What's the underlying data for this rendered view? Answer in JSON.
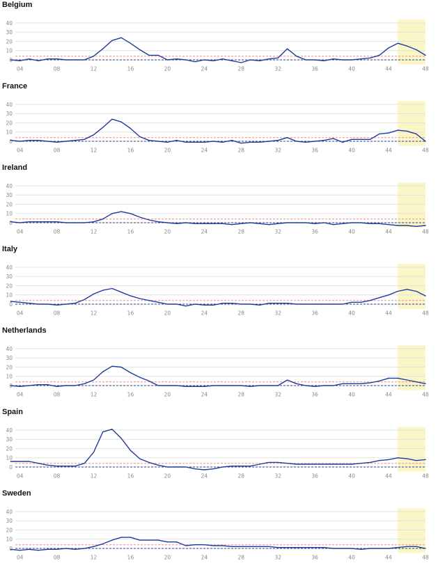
{
  "colors": {
    "line": "#1f3a9c",
    "threshold": "#f08a8a",
    "baseline": "#2f3f8f",
    "highlight": "#fbf6c5",
    "grid": "#e2e2e2",
    "axis_text": "#888888"
  },
  "chart_data": [
    {
      "type": "line",
      "title": "Belgium",
      "x": [
        3,
        4,
        5,
        6,
        7,
        8,
        9,
        10,
        11,
        12,
        13,
        14,
        15,
        16,
        17,
        18,
        19,
        20,
        21,
        22,
        23,
        24,
        25,
        26,
        27,
        28,
        29,
        30,
        31,
        32,
        33,
        34,
        35,
        36,
        37,
        38,
        39,
        40,
        41,
        42,
        43,
        44,
        45,
        46,
        47,
        48
      ],
      "values": [
        0,
        -1,
        1,
        -1,
        1,
        1,
        0,
        0,
        0,
        4,
        12,
        21,
        24,
        18,
        11,
        5,
        5,
        0,
        1,
        0,
        -2,
        0,
        -1,
        1,
        -1,
        -3,
        0,
        -1,
        1,
        2,
        12,
        4,
        0,
        0,
        -1,
        1,
        0,
        0,
        1,
        2,
        5,
        13,
        18,
        15,
        11,
        5
      ],
      "xticks": [
        "04",
        "08",
        "12",
        "16",
        "20",
        "24",
        "28",
        "32",
        "36",
        "40",
        "44",
        "48"
      ],
      "yticks": [
        "40",
        "30",
        "20",
        "10",
        "0"
      ],
      "ylim": [
        -5,
        42
      ],
      "threshold": 4,
      "baseline": 0,
      "highlight_x": [
        45,
        48
      ]
    },
    {
      "type": "line",
      "title": "France",
      "x": [
        3,
        4,
        5,
        6,
        7,
        8,
        9,
        10,
        11,
        12,
        13,
        14,
        15,
        16,
        17,
        18,
        19,
        20,
        21,
        22,
        23,
        24,
        25,
        26,
        27,
        28,
        29,
        30,
        31,
        32,
        33,
        34,
        35,
        36,
        37,
        38,
        39,
        40,
        41,
        42,
        43,
        44,
        45,
        46,
        47,
        48
      ],
      "values": [
        1,
        0,
        1,
        1,
        0,
        -1,
        0,
        1,
        2,
        7,
        15,
        24,
        21,
        14,
        5,
        1,
        0,
        -1,
        1,
        -1,
        -1,
        -1,
        0,
        -1,
        1,
        -2,
        -1,
        -1,
        0,
        1,
        4,
        0,
        -1,
        0,
        1,
        3,
        -1,
        2,
        2,
        2,
        8,
        9,
        12,
        11,
        8,
        0
      ],
      "xticks": [
        "04",
        "08",
        "12",
        "16",
        "20",
        "24",
        "28",
        "32",
        "36",
        "40",
        "44",
        "48"
      ],
      "yticks": [
        "40",
        "30",
        "20",
        "10",
        "0"
      ],
      "ylim": [
        -5,
        42
      ],
      "threshold": 4,
      "baseline": 0,
      "highlight_x": [
        45,
        48
      ]
    },
    {
      "type": "line",
      "title": "Ireland",
      "x": [
        3,
        4,
        5,
        6,
        7,
        8,
        9,
        10,
        11,
        12,
        13,
        14,
        15,
        16,
        17,
        18,
        19,
        20,
        21,
        22,
        23,
        24,
        25,
        26,
        27,
        28,
        29,
        30,
        31,
        32,
        33,
        34,
        35,
        36,
        37,
        38,
        39,
        40,
        41,
        42,
        43,
        44,
        45,
        46,
        47,
        48
      ],
      "values": [
        1,
        0,
        1,
        1,
        1,
        1,
        0,
        0,
        0,
        1,
        4,
        10,
        12,
        10,
        6,
        3,
        1,
        0,
        -1,
        0,
        -1,
        -1,
        -1,
        -1,
        -2,
        -1,
        0,
        -1,
        -2,
        -1,
        0,
        0,
        0,
        -1,
        0,
        -2,
        -1,
        0,
        0,
        -1,
        -1,
        -2,
        -3,
        -3,
        -4,
        -3
      ],
      "xticks": [
        "04",
        "08",
        "12",
        "16",
        "20",
        "24",
        "28",
        "32",
        "36",
        "40",
        "44",
        "48"
      ],
      "yticks": [
        "40",
        "30",
        "20",
        "10",
        "0"
      ],
      "ylim": [
        -5,
        42
      ],
      "threshold": 4,
      "baseline": 0,
      "highlight_x": [
        45,
        48
      ]
    },
    {
      "type": "line",
      "title": "Italy",
      "x": [
        3,
        4,
        5,
        6,
        7,
        8,
        9,
        10,
        11,
        12,
        13,
        14,
        15,
        16,
        17,
        18,
        19,
        20,
        21,
        22,
        23,
        24,
        25,
        26,
        27,
        28,
        29,
        30,
        31,
        32,
        33,
        34,
        35,
        36,
        37,
        38,
        39,
        40,
        41,
        42,
        43,
        44,
        45,
        46,
        47,
        48
      ],
      "values": [
        3,
        2,
        1,
        0,
        0,
        -1,
        0,
        1,
        5,
        11,
        15,
        17,
        13,
        9,
        6,
        4,
        2,
        0,
        0,
        -2,
        0,
        -1,
        -1,
        1,
        1,
        0,
        0,
        -1,
        1,
        1,
        1,
        0,
        0,
        0,
        0,
        0,
        0,
        2,
        2,
        4,
        7,
        10,
        14,
        16,
        14,
        9
      ],
      "xticks": [
        "04",
        "08",
        "12",
        "16",
        "20",
        "24",
        "28",
        "32",
        "36",
        "40",
        "44",
        "48"
      ],
      "yticks": [
        "40",
        "30",
        "20",
        "10",
        "0"
      ],
      "ylim": [
        -5,
        42
      ],
      "threshold": 4,
      "baseline": 0,
      "highlight_x": [
        45,
        48
      ]
    },
    {
      "type": "line",
      "title": "Netherlands",
      "x": [
        3,
        4,
        5,
        6,
        7,
        8,
        9,
        10,
        11,
        12,
        13,
        14,
        15,
        16,
        17,
        18,
        19,
        20,
        21,
        22,
        23,
        24,
        25,
        26,
        27,
        28,
        29,
        30,
        31,
        32,
        33,
        34,
        35,
        36,
        37,
        38,
        39,
        40,
        41,
        42,
        43,
        44,
        45,
        46,
        47,
        48
      ],
      "values": [
        0,
        -1,
        0,
        1,
        1,
        -1,
        0,
        0,
        2,
        6,
        15,
        21,
        20,
        14,
        9,
        5,
        0,
        0,
        0,
        -1,
        -1,
        -1,
        0,
        0,
        0,
        0,
        -1,
        0,
        0,
        0,
        6,
        2,
        0,
        -1,
        0,
        0,
        2,
        2,
        2,
        3,
        5,
        8,
        8,
        6,
        4,
        2
      ],
      "xticks": [
        "04",
        "08",
        "12",
        "16",
        "20",
        "24",
        "28",
        "32",
        "36",
        "40",
        "44",
        "48"
      ],
      "yticks": [
        "40",
        "30",
        "20",
        "10",
        "0"
      ],
      "ylim": [
        -5,
        42
      ],
      "threshold": 4,
      "baseline": 0,
      "highlight_x": [
        45,
        48
      ]
    },
    {
      "type": "line",
      "title": "Spain",
      "x": [
        3,
        4,
        5,
        6,
        7,
        8,
        9,
        10,
        11,
        12,
        13,
        14,
        15,
        16,
        17,
        18,
        19,
        20,
        21,
        22,
        23,
        24,
        25,
        26,
        27,
        28,
        29,
        30,
        31,
        32,
        33,
        34,
        35,
        36,
        37,
        38,
        39,
        40,
        41,
        42,
        43,
        44,
        45,
        46,
        47,
        48
      ],
      "values": [
        6,
        6,
        6,
        4,
        2,
        1,
        1,
        1,
        4,
        16,
        38,
        41,
        31,
        18,
        9,
        5,
        2,
        0,
        0,
        0,
        -2,
        -3,
        -2,
        0,
        1,
        1,
        1,
        3,
        5,
        5,
        4,
        3,
        3,
        3,
        3,
        3,
        3,
        3,
        4,
        5,
        7,
        8,
        10,
        9,
        7,
        8
      ],
      "xticks": [
        "04",
        "08",
        "12",
        "16",
        "20",
        "24",
        "28",
        "32",
        "36",
        "40",
        "44",
        "48"
      ],
      "yticks": [
        "40",
        "30",
        "20",
        "10",
        "0"
      ],
      "ylim": [
        -5,
        42
      ],
      "threshold": 4,
      "baseline": 0,
      "highlight_x": [
        45,
        48
      ]
    },
    {
      "type": "line",
      "title": "Sweden",
      "x": [
        3,
        4,
        5,
        6,
        7,
        8,
        9,
        10,
        11,
        12,
        13,
        14,
        15,
        16,
        17,
        18,
        19,
        20,
        21,
        22,
        23,
        24,
        25,
        26,
        27,
        28,
        29,
        30,
        31,
        32,
        33,
        34,
        35,
        36,
        37,
        38,
        39,
        40,
        41,
        42,
        43,
        44,
        45,
        46,
        47,
        48
      ],
      "values": [
        -1,
        -2,
        -1,
        -2,
        -1,
        -1,
        0,
        -1,
        0,
        2,
        5,
        9,
        12,
        12,
        9,
        9,
        9,
        7,
        7,
        3,
        4,
        4,
        3,
        3,
        2,
        2,
        2,
        2,
        2,
        1,
        1,
        1,
        1,
        1,
        1,
        0,
        0,
        0,
        -1,
        0,
        0,
        0,
        1,
        2,
        2,
        0
      ],
      "xticks": [
        "04",
        "08",
        "12",
        "16",
        "20",
        "24",
        "28",
        "32",
        "36",
        "40",
        "44",
        "48"
      ],
      "yticks": [
        "40",
        "30",
        "20",
        "10",
        "0"
      ],
      "ylim": [
        -5,
        42
      ],
      "threshold": 4,
      "baseline": 0,
      "highlight_x": [
        45,
        48
      ]
    }
  ]
}
